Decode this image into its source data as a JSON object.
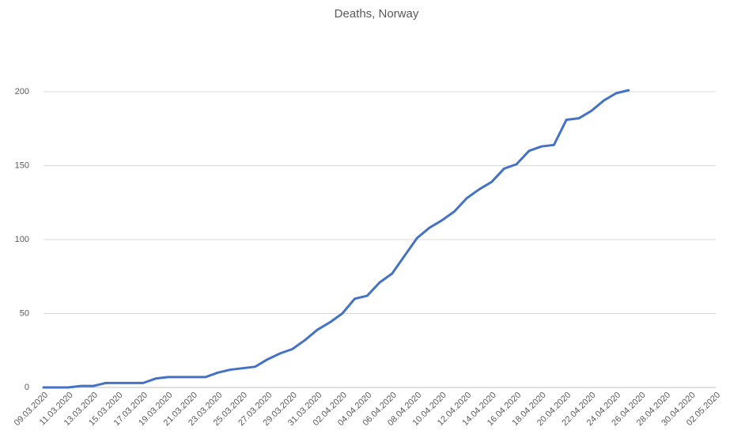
{
  "chart_data": {
    "type": "line",
    "title": "Deaths, Norway",
    "categories": [
      "09.03.2020",
      null,
      "11.03.2020",
      null,
      "13.03.2020",
      null,
      "15.03.2020",
      null,
      "17.03.2020",
      null,
      "19.03.2020",
      null,
      "21.03.2020",
      null,
      "23.03.2020",
      null,
      "25.03.2020",
      null,
      "27.03.2020",
      null,
      "29.03.2020",
      null,
      "31.03.2020",
      null,
      "02.04.2020",
      null,
      "04.04.2020",
      null,
      "06.04.2020",
      null,
      "08.04.2020",
      null,
      "10.04.2020",
      null,
      "12.04.2020",
      null,
      "14.04.2020",
      null,
      "16.04.2020",
      null,
      "18.04.2020",
      null,
      "20.04.2020",
      null,
      "22.04.2020",
      null,
      "24.04.2020",
      null,
      "26.04.2020",
      null,
      "28.04.2020",
      null,
      "30.04.2020",
      null,
      "02.05.2020"
    ],
    "series": [
      {
        "color": "#4472c4",
        "values": [
          0,
          0,
          0,
          1,
          1,
          3,
          3,
          3,
          3,
          6,
          7,
          7,
          7,
          7,
          10,
          12,
          13,
          14,
          19,
          23,
          26,
          32,
          39,
          44,
          50,
          60,
          62,
          71,
          77,
          89,
          101,
          108,
          113,
          119,
          128,
          134,
          139,
          148,
          151,
          160,
          163,
          164,
          181,
          182,
          187,
          194,
          199,
          201,
          null,
          null,
          null,
          null,
          null,
          null,
          null
        ]
      }
    ],
    "ylim": [
      0,
      200
    ],
    "yticks": [
      0,
      50,
      100,
      150,
      200
    ],
    "grid": true
  }
}
